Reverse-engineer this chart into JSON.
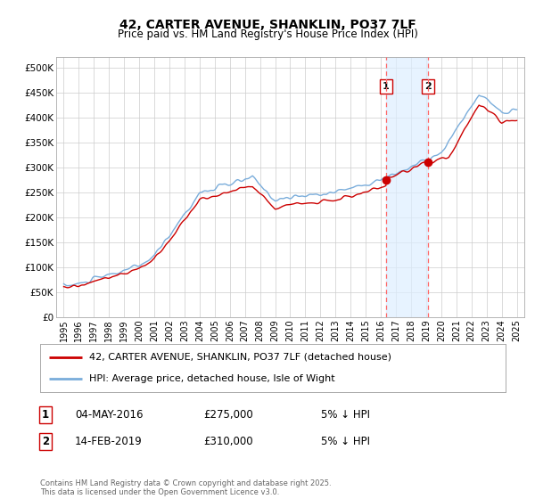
{
  "title": "42, CARTER AVENUE, SHANKLIN, PO37 7LF",
  "subtitle": "Price paid vs. HM Land Registry's House Price Index (HPI)",
  "legend_line1": "42, CARTER AVENUE, SHANKLIN, PO37 7LF (detached house)",
  "legend_line2": "HPI: Average price, detached house, Isle of Wight",
  "footnote": "Contains HM Land Registry data © Crown copyright and database right 2025.\nThis data is licensed under the Open Government Licence v3.0.",
  "property_color": "#cc0000",
  "hpi_color": "#7aaddb",
  "hpi_fill_color": "#ddeeff",
  "marker1_x": 2016.35,
  "marker1_y": 275000,
  "marker1_label": "1",
  "marker1_date": "04-MAY-2016",
  "marker1_price": "£275,000",
  "marker1_note": "5% ↓ HPI",
  "marker2_x": 2019.12,
  "marker2_y": 310000,
  "marker2_label": "2",
  "marker2_date": "14-FEB-2019",
  "marker2_price": "£310,000",
  "marker2_note": "5% ↓ HPI",
  "xlim": [
    1994.5,
    2025.5
  ],
  "ylim": [
    0,
    520000
  ],
  "yticks": [
    0,
    50000,
    100000,
    150000,
    200000,
    250000,
    300000,
    350000,
    400000,
    450000,
    500000
  ],
  "ytick_labels": [
    "£0",
    "£50K",
    "£100K",
    "£150K",
    "£200K",
    "£250K",
    "£300K",
    "£350K",
    "£400K",
    "£450K",
    "£500K"
  ],
  "xticks": [
    1995,
    1996,
    1997,
    1998,
    1999,
    2000,
    2001,
    2002,
    2003,
    2004,
    2005,
    2006,
    2007,
    2008,
    2009,
    2010,
    2011,
    2012,
    2013,
    2014,
    2015,
    2016,
    2017,
    2018,
    2019,
    2020,
    2021,
    2022,
    2023,
    2024,
    2025
  ],
  "background_color": "#ffffff",
  "grid_color": "#cccccc"
}
